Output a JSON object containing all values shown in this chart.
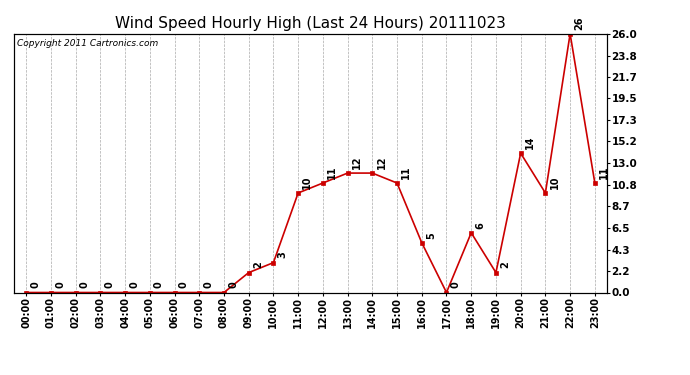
{
  "title": "Wind Speed Hourly High (Last 24 Hours) 20111023",
  "copyright": "Copyright 2011 Cartronics.com",
  "hours": [
    "00:00",
    "01:00",
    "02:00",
    "03:00",
    "04:00",
    "05:00",
    "06:00",
    "07:00",
    "08:00",
    "09:00",
    "10:00",
    "11:00",
    "12:00",
    "13:00",
    "14:00",
    "15:00",
    "16:00",
    "17:00",
    "18:00",
    "19:00",
    "20:00",
    "21:00",
    "22:00",
    "23:00"
  ],
  "values": [
    0,
    0,
    0,
    0,
    0,
    0,
    0,
    0,
    0,
    2,
    3,
    10,
    11,
    12,
    12,
    11,
    5,
    0,
    6,
    2,
    14,
    10,
    26,
    11
  ],
  "line_color": "#cc0000",
  "marker_color": "#cc0000",
  "bg_color": "#ffffff",
  "grid_color": "#aaaaaa",
  "ylim": [
    0,
    26
  ],
  "yticks_right": [
    0.0,
    2.2,
    4.3,
    6.5,
    8.7,
    10.8,
    13.0,
    15.2,
    17.3,
    19.5,
    21.7,
    23.8,
    26.0
  ],
  "title_fontsize": 11,
  "annotation_fontsize": 7,
  "copyright_fontsize": 6.5,
  "xtick_fontsize": 7,
  "ytick_fontsize": 7.5
}
